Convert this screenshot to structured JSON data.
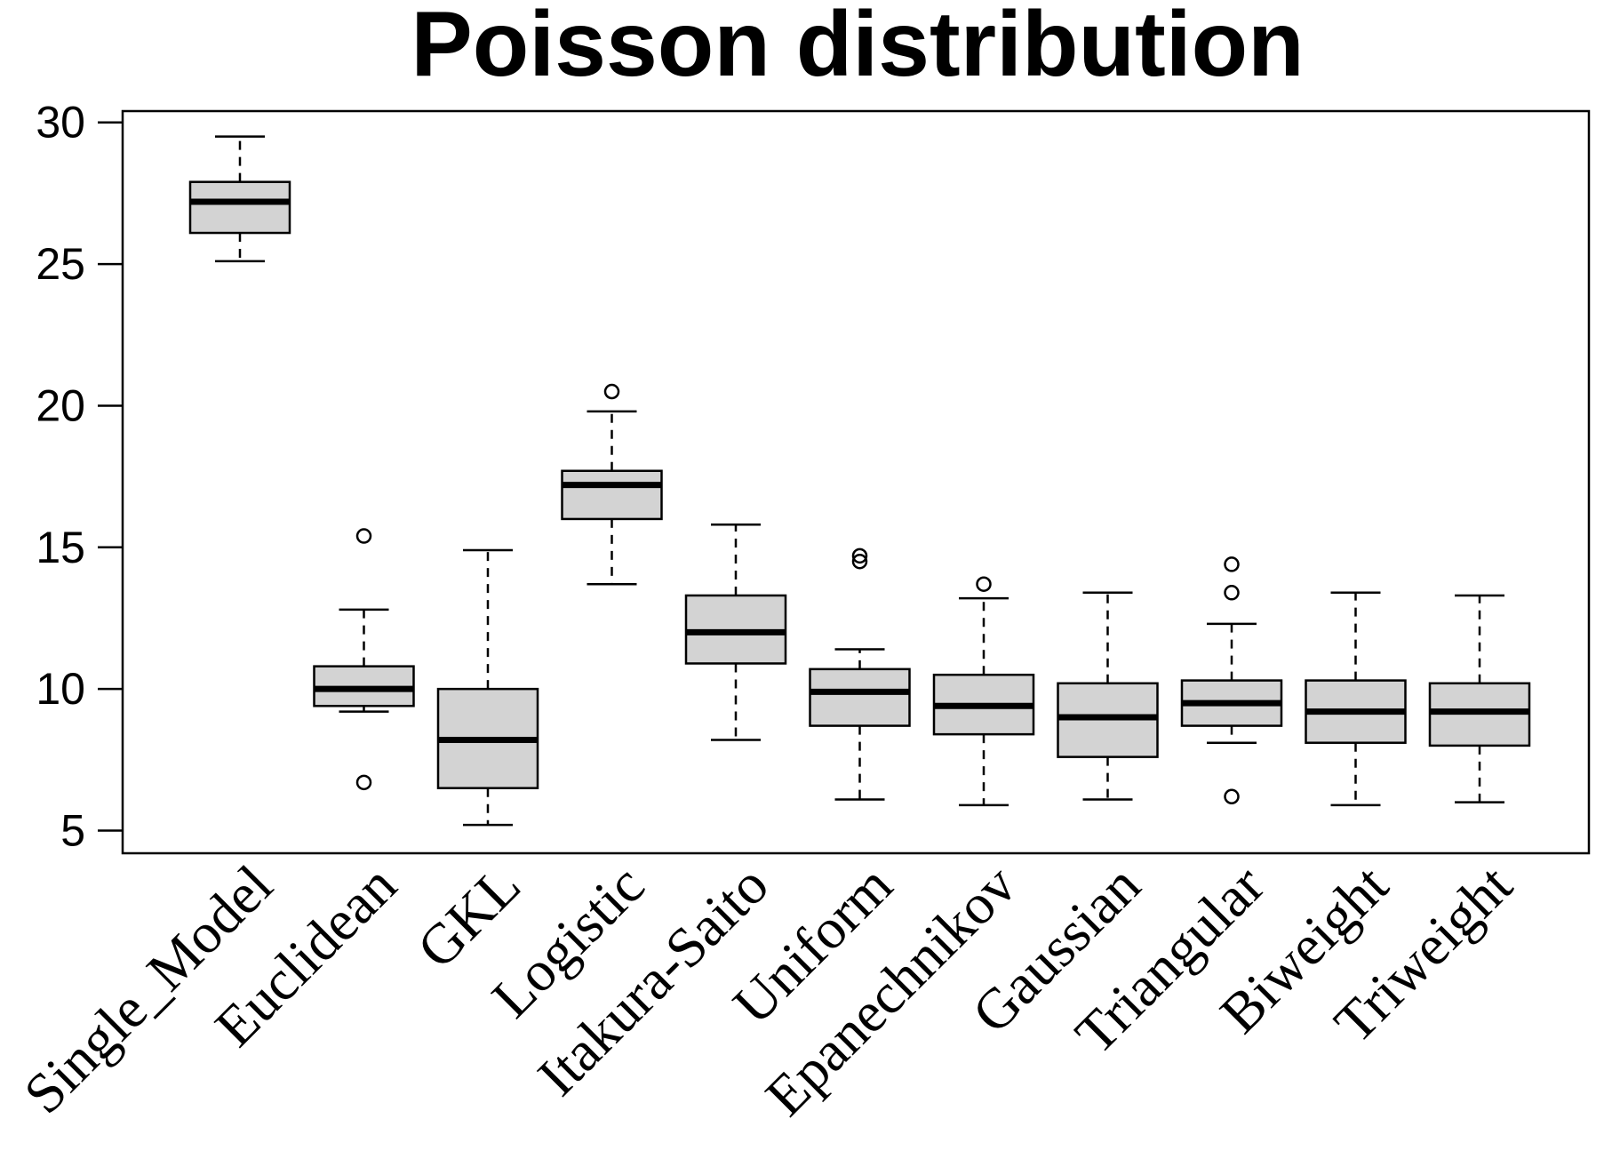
{
  "chart_data": {
    "type": "boxplot",
    "title": "Poisson distribution",
    "xlabel": "",
    "ylabel": "",
    "ylim": [
      4.2,
      30.4
    ],
    "yticks": [
      5,
      10,
      15,
      20,
      25,
      30
    ],
    "box_fill": "#d3d3d3",
    "stroke_color": "#000000",
    "categories": [
      "Single_Model",
      "Euclidean",
      "GKL",
      "Logistic",
      "Itakura-Saito",
      "Uniform",
      "Epanechnikov",
      "Gaussian",
      "Triangular",
      "Biweight",
      "Triweight"
    ],
    "boxes": [
      {
        "name": "Single_Model",
        "whisker_low": 25.1,
        "q1": 26.1,
        "median": 27.2,
        "q3": 27.9,
        "whisker_high": 29.5,
        "outliers": []
      },
      {
        "name": "Euclidean",
        "whisker_low": 9.2,
        "q1": 9.4,
        "median": 10.0,
        "q3": 10.8,
        "whisker_high": 12.8,
        "outliers": [
          15.4,
          6.7
        ]
      },
      {
        "name": "GKL",
        "whisker_low": 5.2,
        "q1": 6.5,
        "median": 8.2,
        "q3": 10.0,
        "whisker_high": 14.9,
        "outliers": []
      },
      {
        "name": "Logistic",
        "whisker_low": 13.7,
        "q1": 16.0,
        "median": 17.2,
        "q3": 17.7,
        "whisker_high": 19.8,
        "outliers": [
          20.5
        ]
      },
      {
        "name": "Itakura-Saito",
        "whisker_low": 8.2,
        "q1": 10.9,
        "median": 12.0,
        "q3": 13.3,
        "whisker_high": 15.8,
        "outliers": []
      },
      {
        "name": "Uniform",
        "whisker_low": 6.1,
        "q1": 8.7,
        "median": 9.9,
        "q3": 10.7,
        "whisker_high": 11.4,
        "outliers": [
          14.7,
          14.5
        ]
      },
      {
        "name": "Epanechnikov",
        "whisker_low": 5.9,
        "q1": 8.4,
        "median": 9.4,
        "q3": 10.5,
        "whisker_high": 13.2,
        "outliers": [
          13.7
        ]
      },
      {
        "name": "Gaussian",
        "whisker_low": 6.1,
        "q1": 7.6,
        "median": 9.0,
        "q3": 10.2,
        "whisker_high": 13.4,
        "outliers": []
      },
      {
        "name": "Triangular",
        "whisker_low": 8.1,
        "q1": 8.7,
        "median": 9.5,
        "q3": 10.3,
        "whisker_high": 12.3,
        "outliers": [
          14.4,
          13.4,
          6.2
        ]
      },
      {
        "name": "Biweight",
        "whisker_low": 5.9,
        "q1": 8.1,
        "median": 9.2,
        "q3": 10.3,
        "whisker_high": 13.4,
        "outliers": []
      },
      {
        "name": "Triweight",
        "whisker_low": 6.0,
        "q1": 8.0,
        "median": 9.2,
        "q3": 10.2,
        "whisker_high": 13.3,
        "outliers": []
      }
    ]
  }
}
